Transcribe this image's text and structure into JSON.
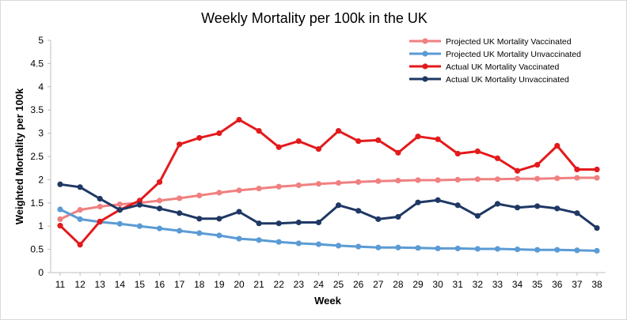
{
  "chart_data": {
    "type": "line",
    "title": "Weekly Mortality  per 100k in the UK",
    "xlabel": "Week",
    "ylabel": "Weighted Mortality per 100k",
    "ylim": [
      0,
      5
    ],
    "yticks": [
      "0",
      "0.5",
      "1",
      "1.5",
      "2",
      "2.5",
      "3",
      "3.5",
      "4",
      "4.5",
      "5"
    ],
    "x": [
      11,
      12,
      13,
      14,
      15,
      16,
      17,
      18,
      19,
      20,
      21,
      22,
      23,
      24,
      25,
      26,
      27,
      28,
      29,
      30,
      31,
      32,
      33,
      34,
      35,
      36,
      37,
      38
    ],
    "grid": false,
    "legend_position": "top-right",
    "series": [
      {
        "name": "Projected UK Mortality Vaccinated",
        "color": "#f08080",
        "values": [
          1.15,
          1.35,
          1.42,
          1.47,
          1.5,
          1.55,
          1.6,
          1.66,
          1.72,
          1.77,
          1.81,
          1.85,
          1.88,
          1.91,
          1.93,
          1.95,
          1.97,
          1.98,
          1.99,
          1.99,
          2.0,
          2.01,
          2.01,
          2.02,
          2.02,
          2.03,
          2.04,
          2.04
        ]
      },
      {
        "name": "Projected UK Mortality Unvaccinated",
        "color": "#5b9bd5",
        "values": [
          1.36,
          1.15,
          1.09,
          1.05,
          1.0,
          0.95,
          0.9,
          0.85,
          0.8,
          0.73,
          0.7,
          0.66,
          0.63,
          0.61,
          0.58,
          0.56,
          0.54,
          0.54,
          0.53,
          0.52,
          0.52,
          0.51,
          0.51,
          0.5,
          0.49,
          0.49,
          0.48,
          0.47
        ]
      },
      {
        "name": "Actual UK Mortality Vaccinated",
        "color": "#e31a1c",
        "values": [
          1.01,
          0.6,
          1.1,
          1.35,
          1.55,
          1.95,
          2.76,
          2.9,
          3.0,
          3.29,
          3.05,
          2.7,
          2.83,
          2.66,
          3.05,
          2.83,
          2.85,
          2.58,
          2.93,
          2.87,
          2.56,
          2.61,
          2.46,
          2.19,
          2.32,
          2.73,
          2.22,
          2.22
        ]
      },
      {
        "name": "Actual UK Mortality Unvaccinated",
        "color": "#1f3864",
        "values": [
          1.9,
          1.84,
          1.59,
          1.35,
          1.46,
          1.38,
          1.28,
          1.16,
          1.16,
          1.31,
          1.06,
          1.06,
          1.08,
          1.08,
          1.45,
          1.33,
          1.15,
          1.2,
          1.51,
          1.56,
          1.45,
          1.22,
          1.48,
          1.4,
          1.43,
          1.38,
          1.28,
          0.96
        ]
      }
    ]
  }
}
